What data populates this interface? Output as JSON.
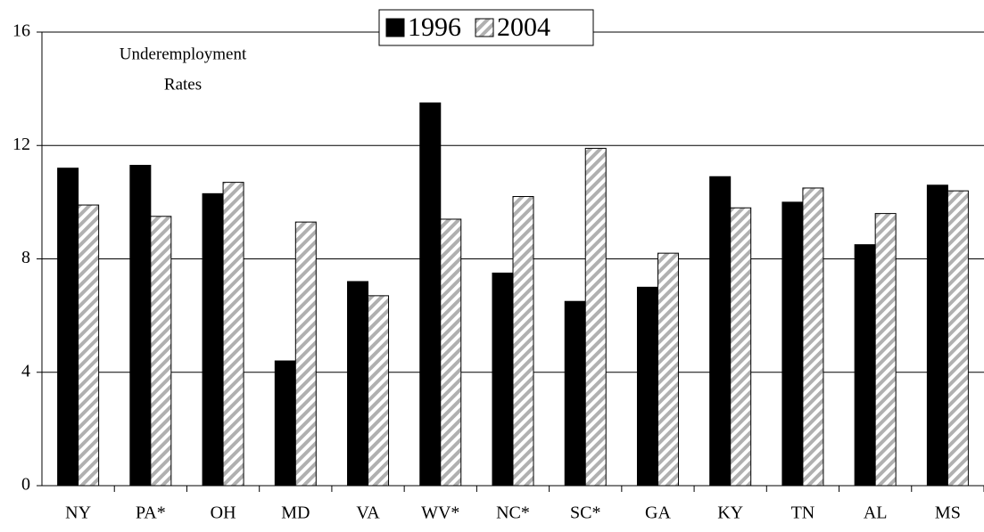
{
  "chart_data": {
    "type": "bar",
    "annotation": [
      "Underemployment",
      "Rates"
    ],
    "categories": [
      "NY",
      "PA*",
      "OH",
      "MD",
      "VA",
      "WV*",
      "NC*",
      "SC*",
      "GA",
      "KY",
      "TN",
      "AL",
      "MS"
    ],
    "series": [
      {
        "name": "1996",
        "color": "#000000",
        "hatch": false,
        "values": [
          11.2,
          11.3,
          10.3,
          4.4,
          7.2,
          13.5,
          7.5,
          6.5,
          7.0,
          10.9,
          10.0,
          8.5,
          10.6
        ]
      },
      {
        "name": "2004",
        "color": "#b0b0b0",
        "hatch": true,
        "values": [
          9.9,
          9.5,
          10.7,
          9.3,
          6.7,
          9.4,
          10.2,
          11.9,
          8.2,
          9.8,
          10.5,
          9.6,
          10.4
        ]
      }
    ],
    "ylim": [
      0,
      16
    ],
    "yticks": [
      0,
      4,
      8,
      12,
      16
    ],
    "grid": true,
    "legend": "top"
  }
}
